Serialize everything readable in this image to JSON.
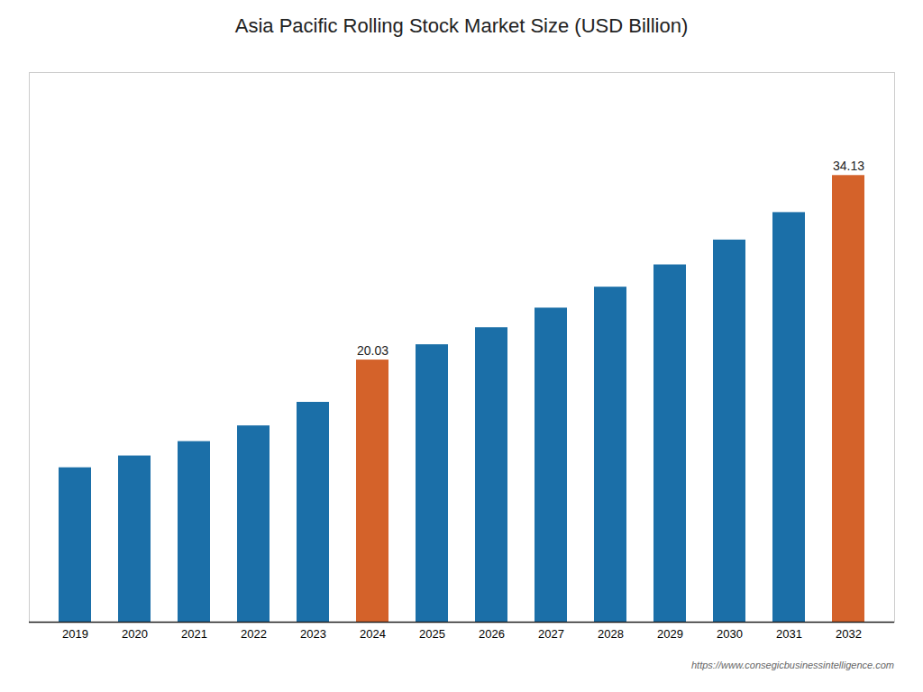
{
  "chart_data": {
    "type": "bar",
    "title": "Asia Pacific Rolling Stock Market Size (USD Billion)",
    "categories": [
      "2019",
      "2020",
      "2021",
      "2022",
      "2023",
      "2024",
      "2025",
      "2026",
      "2027",
      "2028",
      "2029",
      "2030",
      "2031",
      "2032"
    ],
    "values": [
      11.8,
      12.7,
      13.8,
      15.0,
      16.8,
      20.03,
      21.2,
      22.5,
      24.0,
      25.6,
      27.3,
      29.2,
      31.3,
      34.13
    ],
    "value_labels": [
      null,
      null,
      null,
      null,
      null,
      "20.03",
      null,
      null,
      null,
      null,
      null,
      null,
      null,
      "34.13"
    ],
    "colors": [
      "#1b6fa8",
      "#1b6fa8",
      "#1b6fa8",
      "#1b6fa8",
      "#1b6fa8",
      "#d4622a",
      "#1b6fa8",
      "#1b6fa8",
      "#1b6fa8",
      "#1b6fa8",
      "#1b6fa8",
      "#1b6fa8",
      "#1b6fa8",
      "#d4622a"
    ],
    "ylim": [
      0,
      42
    ],
    "grid": false,
    "tick_labels": "x",
    "caption": "https://www.consegicbusinessintelligence.com"
  }
}
